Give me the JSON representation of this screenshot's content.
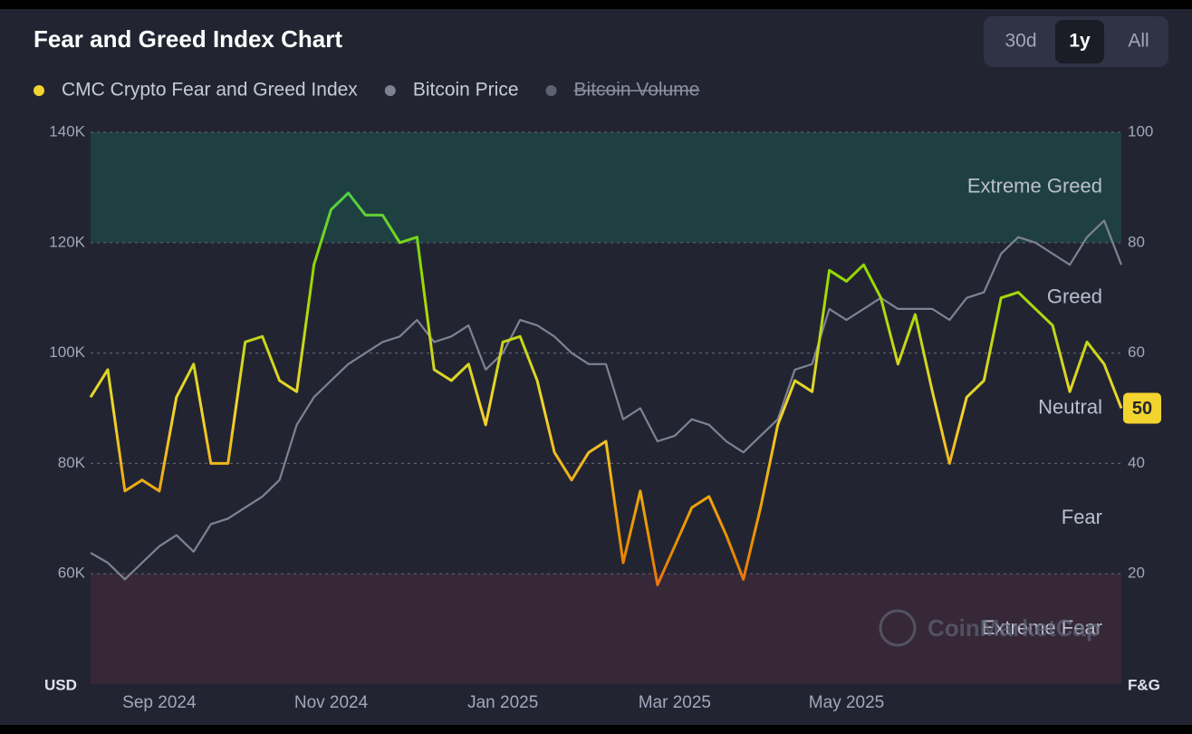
{
  "chart_data": {
    "type": "line",
    "title": "Fear and Greed Index Chart",
    "range_buttons": [
      "30d",
      "1y",
      "All"
    ],
    "active_button": 1,
    "categories": [
      null,
      null,
      null,
      null,
      "Sep 2024",
      null,
      null,
      null,
      null,
      null,
      null,
      null,
      null,
      null,
      "Nov 2024",
      null,
      null,
      null,
      null,
      null,
      null,
      null,
      null,
      null,
      "Jan 2025",
      null,
      null,
      null,
      null,
      null,
      null,
      null,
      null,
      null,
      "Mar 2025",
      null,
      null,
      null,
      null,
      null,
      null,
      null,
      null,
      null,
      "May 2025",
      null,
      null,
      null,
      null,
      null,
      null,
      null,
      null,
      null,
      null,
      null,
      null,
      null,
      null,
      null,
      null
    ],
    "series": [
      {
        "name": "CMC Crypto Fear and Greed Index",
        "color": "#f3d42f",
        "axis": "y2",
        "values": [
          52,
          57,
          35,
          37,
          35,
          52,
          58,
          40,
          40,
          62,
          63,
          55,
          53,
          76,
          86,
          89,
          85,
          85,
          80,
          81,
          57,
          55,
          58,
          47,
          62,
          63,
          55,
          42,
          37,
          42,
          44,
          22,
          35,
          18,
          25,
          32,
          34,
          27,
          19,
          32,
          47,
          55,
          53,
          75,
          73,
          76,
          70,
          58,
          67,
          53,
          40,
          52,
          55,
          70,
          71,
          68,
          65,
          53,
          62,
          58,
          50
        ]
      },
      {
        "name": "Bitcoin Price",
        "color": "#7d8394",
        "values": [
          63800,
          62000,
          59000,
          62000,
          65000,
          67000,
          64000,
          69000,
          70000,
          72000,
          74000,
          77000,
          87000,
          92000,
          95000,
          98000,
          100000,
          102000,
          103000,
          106000,
          102000,
          103000,
          105000,
          97000,
          100000,
          106000,
          105000,
          103000,
          100000,
          98000,
          98000,
          88000,
          90000,
          84000,
          85000,
          88000,
          87000,
          84000,
          82000,
          85000,
          88000,
          97000,
          98000,
          108000,
          106000,
          108000,
          110000,
          108000,
          108000,
          108000,
          106000,
          110000,
          111000,
          118000,
          121000,
          120000,
          118000,
          116000,
          121000,
          124000,
          116000
        ]
      },
      {
        "name": "Bitcoin Volume",
        "color": "#5d6273",
        "hidden": true
      }
    ],
    "color_scale": [
      {
        "value": 0,
        "color": "#ea3943"
      },
      {
        "value": 25,
        "color": "#ea8c00"
      },
      {
        "value": 50,
        "color": "#f3d42f"
      },
      {
        "value": 75,
        "color": "#93d900"
      },
      {
        "value": 100,
        "color": "#16c784"
      }
    ],
    "bands": [
      {
        "from": 80,
        "to": 100,
        "color": "#1f4a45"
      },
      {
        "from": 0,
        "to": 20,
        "color": "#3d2a3a"
      }
    ],
    "zone_labels": [
      {
        "value": 90,
        "label": "Extreme Greed"
      },
      {
        "value": 70,
        "label": "Greed"
      },
      {
        "value": 50,
        "label": "Neutral"
      },
      {
        "value": 30,
        "label": "Fear"
      },
      {
        "value": 10,
        "label": "Extreme Fear"
      }
    ],
    "ylim": [
      40000,
      140000
    ],
    "yticks": [
      {
        "value": 60000,
        "label": "60K"
      },
      {
        "value": 80000,
        "label": "80K"
      },
      {
        "value": 100000,
        "label": "100K"
      },
      {
        "value": 120000,
        "label": "120K"
      },
      {
        "value": 140000,
        "label": "140K"
      }
    ],
    "y2lim": [
      0,
      100
    ],
    "y2ticks": [
      20,
      40,
      60,
      80,
      100
    ],
    "y_unit": "USD",
    "y2_unit": "F&G",
    "watermark": "CoinMarketCap",
    "grid": true
  }
}
